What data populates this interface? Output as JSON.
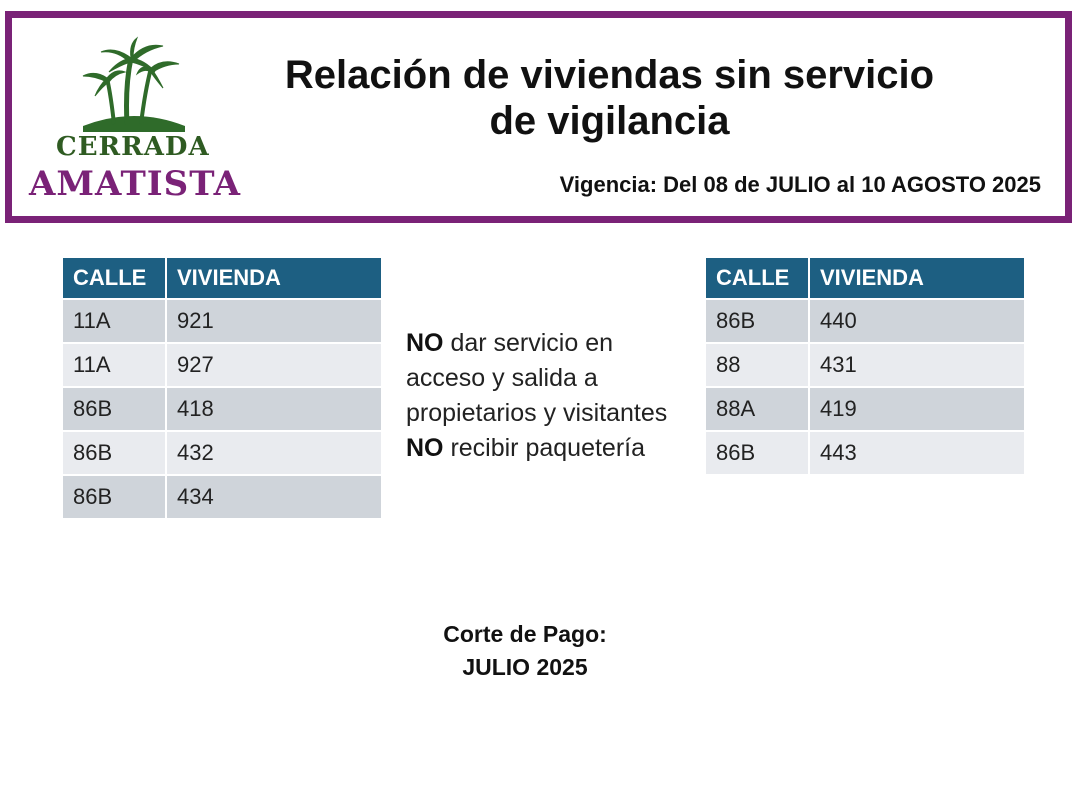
{
  "logo": {
    "line1": "CERRADA",
    "line2": "AMATISTA"
  },
  "header": {
    "title_line1": "Relación de viviendas sin servicio",
    "title_line2": "de vigilancia",
    "vigencia": "Vigencia: Del 08 de JULIO al 10 AGOSTO 2025"
  },
  "table_left": {
    "headers": [
      "CALLE",
      "VIVIENDA"
    ],
    "rows": [
      [
        "11A",
        "921"
      ],
      [
        "11A",
        "927"
      ],
      [
        "86B",
        "418"
      ],
      [
        "86B",
        "432"
      ],
      [
        "86B",
        "434"
      ]
    ]
  },
  "table_right": {
    "headers": [
      "CALLE",
      "VIVIENDA"
    ],
    "rows": [
      [
        "86B",
        "440"
      ],
      [
        "88",
        "431"
      ],
      [
        "88A",
        "419"
      ],
      [
        "86B",
        "443"
      ]
    ]
  },
  "notice": {
    "no1": "NO",
    "text1": " dar servicio en acceso y salida a propietarios y visitantes",
    "no2": "NO",
    "text2": " recibir paquetería"
  },
  "corte": {
    "line1": "Corte de Pago:",
    "line2": "JULIO 2025"
  },
  "colors": {
    "purple": "#7a2277",
    "green": "#2f5b22",
    "table_header": "#1d5f82"
  }
}
